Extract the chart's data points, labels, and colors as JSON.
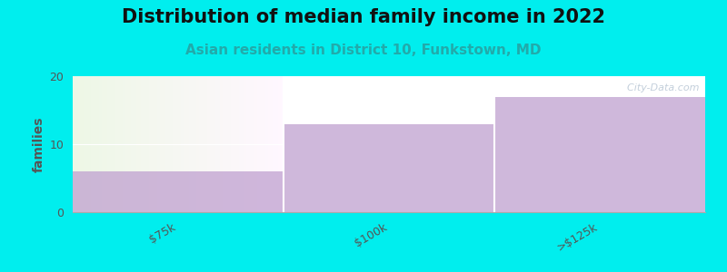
{
  "title": "Distribution of median family income in 2022",
  "subtitle": "Asian residents in District 10, Funkstown, MD",
  "categories": [
    "$75k",
    "$100k",
    ">$125k"
  ],
  "values": [
    6,
    13,
    17
  ],
  "bar_color": "#C0A0D0",
  "background_color": "#00EEEE",
  "plot_bg_color": "#FFFFFF",
  "green_bg_color_top": "#e8f5e2",
  "green_bg_color_bottom": "#f5faf0",
  "ylabel": "families",
  "ylim": [
    0,
    20
  ],
  "yticks": [
    0,
    10,
    20
  ],
  "title_fontsize": 15,
  "subtitle_fontsize": 11,
  "subtitle_color": "#22AAAA",
  "title_color": "#111111",
  "watermark": "  City-Data.com",
  "tick_label_fontsize": 9,
  "tick_label_color": "#555555"
}
